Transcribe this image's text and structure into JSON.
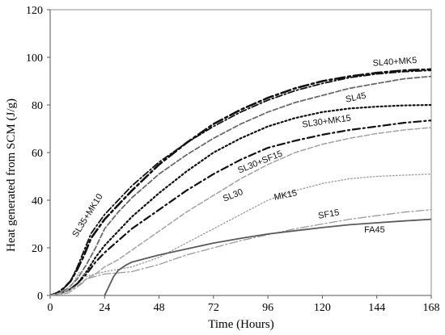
{
  "chart_data": {
    "type": "line",
    "title": "",
    "xlabel": "Time (Hours)",
    "ylabel": "Heat generated from SCM (J/g)",
    "xlim": [
      0,
      168
    ],
    "ylim": [
      0,
      120
    ],
    "xticks": [
      0,
      24,
      48,
      72,
      96,
      120,
      144,
      168
    ],
    "yticks": [
      0,
      20,
      40,
      60,
      80,
      100,
      120
    ],
    "grid": false,
    "legend": "inline labels",
    "series": [
      {
        "name": "SL40+MK5",
        "color": "#111111",
        "dash": "12,4,3,4",
        "width": 2.6,
        "points": [
          [
            0,
            0
          ],
          [
            3,
            1
          ],
          [
            6,
            3
          ],
          [
            9,
            6
          ],
          [
            12,
            11
          ],
          [
            15,
            17
          ],
          [
            18,
            24
          ],
          [
            24,
            32
          ],
          [
            30,
            38
          ],
          [
            36,
            44
          ],
          [
            48,
            55
          ],
          [
            60,
            64
          ],
          [
            72,
            72
          ],
          [
            84,
            78
          ],
          [
            96,
            83
          ],
          [
            108,
            87
          ],
          [
            120,
            90
          ],
          [
            132,
            92
          ],
          [
            144,
            93.5
          ],
          [
            156,
            94.5
          ],
          [
            168,
            95
          ]
        ]
      },
      {
        "name": "SL35+MK10",
        "color": "#111111",
        "dash": "8,3,2,3",
        "width": 1.8,
        "points": [
          [
            0,
            0
          ],
          [
            3,
            1
          ],
          [
            6,
            3
          ],
          [
            9,
            6
          ],
          [
            12,
            12
          ],
          [
            15,
            19
          ],
          [
            18,
            26
          ],
          [
            24,
            34
          ],
          [
            30,
            40
          ],
          [
            36,
            46
          ],
          [
            48,
            56
          ],
          [
            60,
            64
          ],
          [
            72,
            71
          ],
          [
            84,
            77
          ],
          [
            96,
            82
          ],
          [
            108,
            86
          ],
          [
            120,
            89
          ],
          [
            132,
            91.5
          ],
          [
            144,
            93
          ],
          [
            156,
            94
          ],
          [
            168,
            94.5
          ]
        ]
      },
      {
        "name": "SL45",
        "color": "#6a6a6a",
        "dash": "6,3",
        "width": 1.8,
        "points": [
          [
            0,
            0
          ],
          [
            4,
            1
          ],
          [
            8,
            3
          ],
          [
            12,
            7
          ],
          [
            16,
            13
          ],
          [
            20,
            20
          ],
          [
            24,
            28
          ],
          [
            30,
            35
          ],
          [
            36,
            41
          ],
          [
            48,
            51
          ],
          [
            60,
            59
          ],
          [
            72,
            66
          ],
          [
            84,
            72
          ],
          [
            96,
            77
          ],
          [
            108,
            81
          ],
          [
            120,
            84
          ],
          [
            132,
            87
          ],
          [
            144,
            89
          ],
          [
            156,
            91
          ],
          [
            168,
            92
          ]
        ]
      },
      {
        "name": "SL30+MK15",
        "color": "#111111",
        "dash": "2,3",
        "width": 2.2,
        "points": [
          [
            0,
            0
          ],
          [
            4,
            1
          ],
          [
            8,
            2
          ],
          [
            12,
            5
          ],
          [
            16,
            10
          ],
          [
            20,
            16
          ],
          [
            24,
            21
          ],
          [
            30,
            27
          ],
          [
            36,
            33
          ],
          [
            48,
            43
          ],
          [
            60,
            52
          ],
          [
            72,
            60
          ],
          [
            84,
            66
          ],
          [
            96,
            71
          ],
          [
            108,
            74.5
          ],
          [
            120,
            77
          ],
          [
            132,
            78.5
          ],
          [
            144,
            79.3
          ],
          [
            156,
            79.8
          ],
          [
            168,
            80
          ]
        ]
      },
      {
        "name": "SL30+SF15",
        "color": "#111111",
        "dash": "9,4,2,4",
        "width": 2.2,
        "points": [
          [
            0,
            0
          ],
          [
            4,
            1
          ],
          [
            8,
            2
          ],
          [
            12,
            5
          ],
          [
            16,
            9
          ],
          [
            20,
            14
          ],
          [
            24,
            18
          ],
          [
            30,
            23
          ],
          [
            36,
            28
          ],
          [
            48,
            36
          ],
          [
            60,
            44
          ],
          [
            72,
            51
          ],
          [
            84,
            57
          ],
          [
            96,
            62
          ],
          [
            108,
            65
          ],
          [
            120,
            67.5
          ],
          [
            132,
            69.5
          ],
          [
            144,
            71
          ],
          [
            156,
            72.5
          ],
          [
            168,
            73.5
          ]
        ]
      },
      {
        "name": "SL30",
        "color": "#a6a6a6",
        "dash": "6,3",
        "width": 1.6,
        "points": [
          [
            0,
            0
          ],
          [
            4,
            1
          ],
          [
            8,
            2
          ],
          [
            12,
            4
          ],
          [
            16,
            7
          ],
          [
            20,
            9
          ],
          [
            24,
            12
          ],
          [
            30,
            15
          ],
          [
            36,
            19
          ],
          [
            48,
            27
          ],
          [
            60,
            35
          ],
          [
            72,
            42
          ],
          [
            84,
            49
          ],
          [
            96,
            55
          ],
          [
            108,
            60
          ],
          [
            120,
            63.5
          ],
          [
            132,
            66
          ],
          [
            144,
            68
          ],
          [
            156,
            69.5
          ],
          [
            168,
            70.5
          ]
        ]
      },
      {
        "name": "MK15",
        "color": "#9a9a9a",
        "dash": "1.5,2.5",
        "width": 1.3,
        "points": [
          [
            0,
            0
          ],
          [
            6,
            1
          ],
          [
            10,
            5
          ],
          [
            13,
            10
          ],
          [
            16,
            8
          ],
          [
            20,
            9
          ],
          [
            24,
            10
          ],
          [
            30,
            11
          ],
          [
            36,
            12
          ],
          [
            48,
            16
          ],
          [
            60,
            22
          ],
          [
            72,
            28
          ],
          [
            84,
            34
          ],
          [
            96,
            40
          ],
          [
            108,
            44
          ],
          [
            120,
            47
          ],
          [
            132,
            49
          ],
          [
            144,
            50
          ],
          [
            156,
            50.5
          ],
          [
            168,
            51
          ]
        ]
      },
      {
        "name": "SF15",
        "color": "#9a9a9a",
        "dash": "10,3,2,3",
        "width": 1.3,
        "points": [
          [
            0,
            0
          ],
          [
            8,
            1
          ],
          [
            14,
            5
          ],
          [
            16,
            7
          ],
          [
            20,
            8
          ],
          [
            24,
            9
          ],
          [
            30,
            9.5
          ],
          [
            36,
            10
          ],
          [
            48,
            13
          ],
          [
            60,
            17
          ],
          [
            72,
            20
          ],
          [
            84,
            23
          ],
          [
            96,
            25.5
          ],
          [
            108,
            28
          ],
          [
            120,
            30
          ],
          [
            132,
            32
          ],
          [
            144,
            33.5
          ],
          [
            156,
            35
          ],
          [
            168,
            36
          ]
        ]
      },
      {
        "name": "FA45",
        "color": "#5a5a5a",
        "dash": "",
        "width": 1.8,
        "points": [
          [
            24,
            0
          ],
          [
            26,
            4
          ],
          [
            28,
            8
          ],
          [
            30,
            10.5
          ],
          [
            33,
            12.5
          ],
          [
            36,
            14
          ],
          [
            42,
            15.5
          ],
          [
            48,
            17
          ],
          [
            60,
            19.5
          ],
          [
            72,
            22
          ],
          [
            84,
            24
          ],
          [
            96,
            25.8
          ],
          [
            108,
            27.2
          ],
          [
            120,
            28.5
          ],
          [
            132,
            29.7
          ],
          [
            144,
            30.5
          ],
          [
            156,
            31.3
          ],
          [
            168,
            32
          ]
        ]
      }
    ],
    "annotations": [
      {
        "text": "SL40+MK5",
        "x": 152,
        "y": 97,
        "angle": -4
      },
      {
        "text": "SL45",
        "x": 135,
        "y": 82,
        "angle": -12
      },
      {
        "text": "SL30+MK15",
        "x": 122,
        "y": 72,
        "angle": -8
      },
      {
        "text": "SL30+SF15",
        "x": 93,
        "y": 55,
        "angle": -22
      },
      {
        "text": "SL30",
        "x": 81,
        "y": 41,
        "angle": -22
      },
      {
        "text": "MK15",
        "x": 104,
        "y": 41,
        "angle": -12
      },
      {
        "text": "SF15",
        "x": 123,
        "y": 33,
        "angle": -10
      },
      {
        "text": "FA45",
        "x": 143,
        "y": 26.5,
        "angle": 0
      },
      {
        "text": "SL35+MK10",
        "x": 17.5,
        "y": 33,
        "angle": -58
      }
    ]
  }
}
